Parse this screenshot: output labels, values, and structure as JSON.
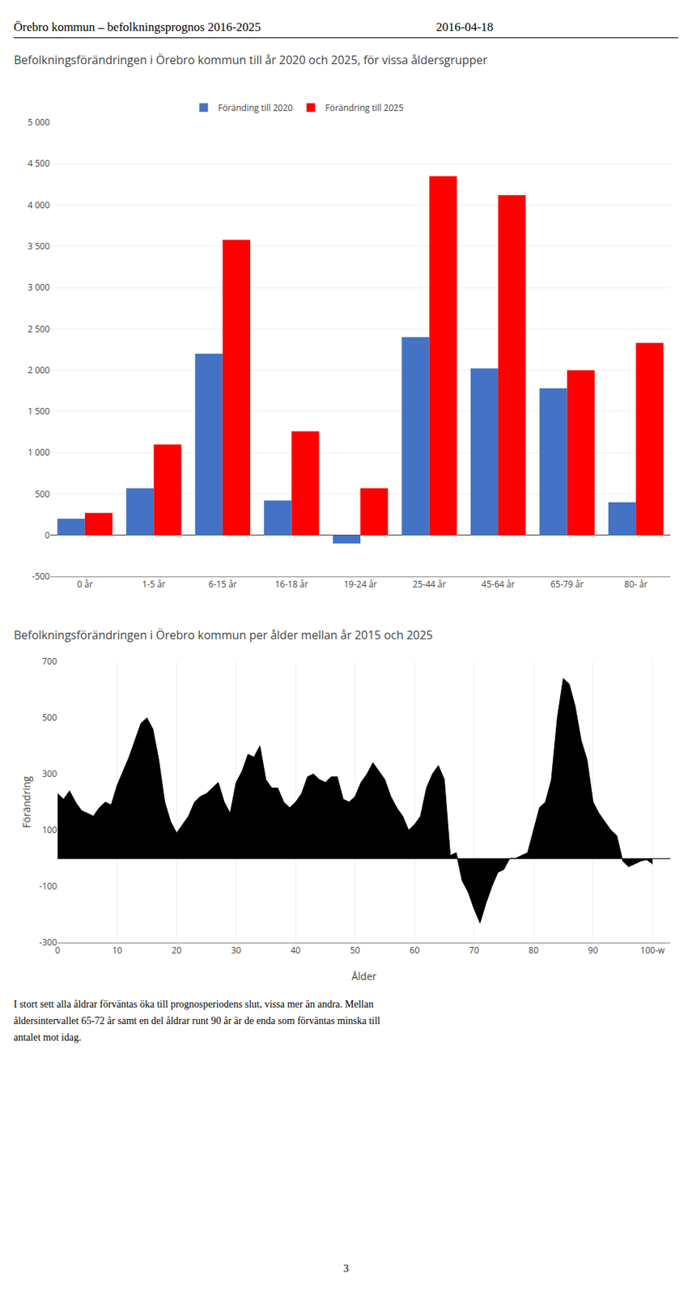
{
  "header": [
    "Örebro kommun – befolkningsprognos 2016-2025",
    "2016-04-18"
  ],
  "text": [
    "I stort sett alla åldrar förväntas öka till prognosperiodens slut, vissa mer än andra. Mellan",
    "åldersintervallet 65-72 år samt en del åldrar runt 90 år är de enda som förväntas minska till",
    "antalet mot idag."
  ],
  "page_number": "3",
  "chart_data": [
    {
      "type": "bar",
      "title": "Befolkningsförändringen i Örebro kommun till år 2020 och 2025, för vissa åldersgrupper",
      "categories": [
        "0 år",
        "1-5 år",
        "6-15 år",
        "16-18 år",
        "19-24 år",
        "25-44 år",
        "45-64 år",
        "65-79 år",
        "80- år"
      ],
      "series": [
        {
          "name": "Föränding till 2020",
          "color": "#4472c4",
          "values": [
            200,
            570,
            2200,
            420,
            -100,
            2400,
            2020,
            1780,
            400
          ]
        },
        {
          "name": "Förändring till 2025",
          "color": "#ff0000",
          "values": [
            270,
            1100,
            3580,
            1260,
            570,
            4350,
            4120,
            2000,
            2330
          ]
        }
      ],
      "ylim": [
        -500,
        5000
      ],
      "yticks": [
        -500,
        0,
        500,
        {
          "value": 1000,
          "label": "1 000"
        },
        {
          "value": 1500,
          "label": "1 500"
        },
        {
          "value": 2000,
          "label": "2 000"
        },
        {
          "value": 2500,
          "label": "2 500"
        },
        {
          "value": 3000,
          "label": "3 000"
        },
        {
          "value": 3500,
          "label": "3 500"
        },
        {
          "value": 4000,
          "label": "4 000"
        },
        {
          "value": 4500,
          "label": "4 500"
        },
        {
          "value": 5000,
          "label": "5 000"
        }
      ],
      "grid": "y",
      "legend": "top"
    },
    {
      "type": "area",
      "title": "Befolkningsförändringen i Örebro kommun per ålder mellan år 2015 och 2025",
      "xlabel": "Ålder",
      "ylabel": "Förändring",
      "x": [
        0,
        1,
        2,
        3,
        4,
        5,
        6,
        7,
        8,
        9,
        10,
        11,
        12,
        13,
        14,
        15,
        16,
        17,
        18,
        19,
        20,
        21,
        22,
        23,
        24,
        25,
        26,
        27,
        28,
        29,
        30,
        31,
        32,
        33,
        34,
        35,
        36,
        37,
        38,
        39,
        40,
        41,
        42,
        43,
        44,
        45,
        46,
        47,
        48,
        49,
        50,
        51,
        52,
        53,
        54,
        55,
        56,
        57,
        58,
        59,
        60,
        61,
        62,
        63,
        64,
        65,
        66,
        67,
        68,
        69,
        70,
        71,
        72,
        73,
        74,
        75,
        76,
        77,
        78,
        79,
        80,
        81,
        82,
        83,
        84,
        85,
        86,
        87,
        88,
        89,
        90,
        91,
        92,
        93,
        94,
        95,
        96,
        97,
        98,
        99,
        100
      ],
      "values": [
        230,
        210,
        240,
        200,
        170,
        160,
        150,
        180,
        200,
        190,
        260,
        310,
        360,
        420,
        480,
        500,
        460,
        350,
        200,
        130,
        90,
        120,
        150,
        200,
        220,
        230,
        250,
        270,
        200,
        160,
        270,
        310,
        370,
        360,
        400,
        280,
        250,
        250,
        200,
        180,
        200,
        230,
        290,
        300,
        280,
        270,
        290,
        290,
        210,
        200,
        220,
        270,
        300,
        340,
        310,
        280,
        220,
        180,
        150,
        100,
        120,
        150,
        250,
        300,
        330,
        280,
        10,
        20,
        -80,
        -120,
        -180,
        -230,
        -160,
        -100,
        -50,
        -40,
        0,
        0,
        10,
        20,
        100,
        180,
        200,
        280,
        500,
        640,
        620,
        540,
        420,
        350,
        200,
        160,
        130,
        100,
        80,
        -10,
        -30,
        -20,
        -10,
        -5,
        -20
      ],
      "color": "#000000",
      "xlim": [
        0,
        103
      ],
      "xticks": [
        0,
        10,
        20,
        30,
        40,
        50,
        60,
        70,
        80,
        90,
        {
          "value": 100,
          "label": "100-w"
        }
      ],
      "ylim": [
        -300,
        700
      ],
      "yticks": [
        -300,
        -100,
        100,
        300,
        500,
        700
      ],
      "grid": "x"
    }
  ]
}
